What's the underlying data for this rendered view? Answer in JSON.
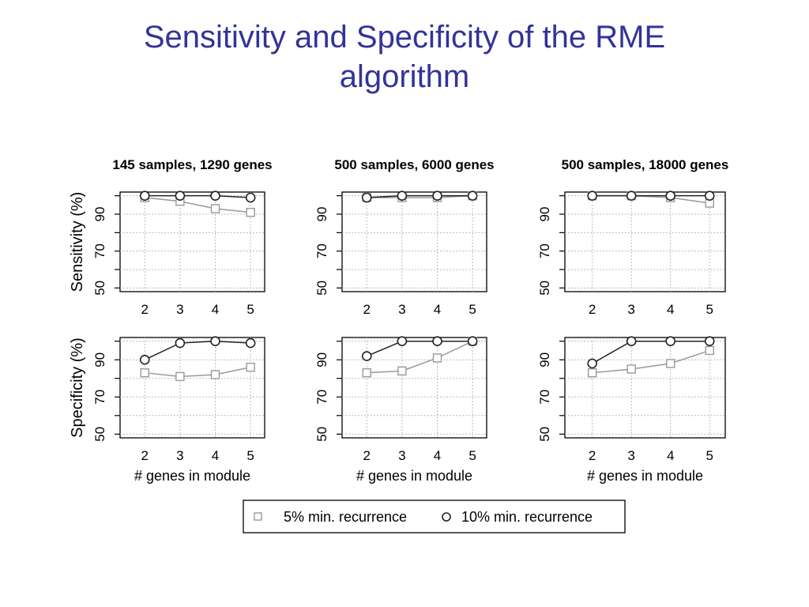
{
  "slide": {
    "title_line1": "Sensitivity and Specificity of the RME",
    "title_line2": "algorithm"
  },
  "colors": {
    "title": "#333399",
    "series_5pct": "#999999",
    "series_10pct": "#222222",
    "grid": "#bbbbbb"
  },
  "chart_data": {
    "type": "line",
    "layout": "2x3 small multiples",
    "panel_titles": [
      "145 samples, 1290 genes",
      "500 samples, 6000 genes",
      "500 samples, 18000 genes"
    ],
    "row_ylabels": [
      "Sensitivity (%)",
      "Specificity (%)"
    ],
    "xlabel": "# genes in module",
    "x": [
      2,
      3,
      4,
      5
    ],
    "y_ticks": [
      50,
      70,
      90
    ],
    "ylim": [
      48,
      102
    ],
    "grid": true,
    "legend": {
      "placement": "bottom",
      "entries": [
        {
          "name": "5% min. recurrence",
          "marker": "square"
        },
        {
          "name": "10% min. recurrence",
          "marker": "circle"
        }
      ]
    },
    "panels": [
      {
        "row": 0,
        "col": 0,
        "metric": "Sensitivity",
        "series": [
          {
            "name": "5% min. recurrence",
            "values": [
              99,
              97,
              93,
              91
            ]
          },
          {
            "name": "10% min. recurrence",
            "values": [
              100,
              100,
              100,
              99
            ]
          }
        ]
      },
      {
        "row": 0,
        "col": 1,
        "metric": "Sensitivity",
        "series": [
          {
            "name": "5% min. recurrence",
            "values": [
              99,
              99,
              99,
              100
            ]
          },
          {
            "name": "10% min. recurrence",
            "values": [
              99,
              100,
              100,
              100
            ]
          }
        ]
      },
      {
        "row": 0,
        "col": 2,
        "metric": "Sensitivity",
        "series": [
          {
            "name": "5% min. recurrence",
            "values": [
              100,
              100,
              99,
              96
            ]
          },
          {
            "name": "10% min. recurrence",
            "values": [
              100,
              100,
              100,
              100
            ]
          }
        ]
      },
      {
        "row": 1,
        "col": 0,
        "metric": "Specificity",
        "series": [
          {
            "name": "5% min. recurrence",
            "values": [
              83,
              81,
              82,
              86
            ]
          },
          {
            "name": "10% min. recurrence",
            "values": [
              90,
              99,
              100,
              99
            ]
          }
        ]
      },
      {
        "row": 1,
        "col": 1,
        "metric": "Specificity",
        "series": [
          {
            "name": "5% min. recurrence",
            "values": [
              83,
              84,
              91,
              100
            ]
          },
          {
            "name": "10% min. recurrence",
            "values": [
              92,
              100,
              100,
              100
            ]
          }
        ]
      },
      {
        "row": 1,
        "col": 2,
        "metric": "Specificity",
        "series": [
          {
            "name": "5% min. recurrence",
            "values": [
              83,
              85,
              88,
              95
            ]
          },
          {
            "name": "10% min. recurrence",
            "values": [
              88,
              100,
              100,
              100
            ]
          }
        ]
      }
    ]
  }
}
